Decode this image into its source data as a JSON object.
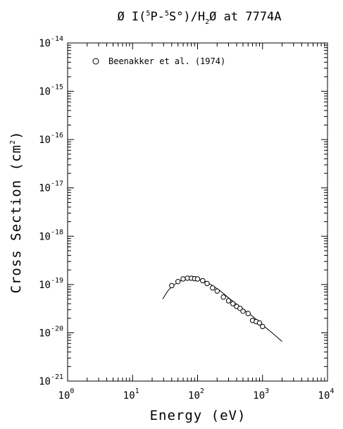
{
  "chart_data": {
    "type": "scatter",
    "title": "O I(5P-5S°)/H2O at 7774A",
    "title_parts": {
      "species": "Ø I(",
      "upper_sup": "5",
      "upper_term": "P-",
      "lower_sup": "5",
      "lower_term": "S°)/H",
      "sub_2": "2",
      "tail": "Ø at 7774A"
    },
    "xlabel": "Energy (eV)",
    "ylabel": "Cross Section (cm2)",
    "ylabel_parts": {
      "main": "Cross Section (cm",
      "sup": "2",
      "close": ")"
    },
    "x_scale": "log",
    "y_scale": "log",
    "xlim": [
      1,
      10000
    ],
    "ylim": [
      1e-21,
      1e-14
    ],
    "x_ticks": [
      {
        "base": "10",
        "exp": "0",
        "value": 1
      },
      {
        "base": "10",
        "exp": "1",
        "value": 10
      },
      {
        "base": "10",
        "exp": "2",
        "value": 100
      },
      {
        "base": "10",
        "exp": "3",
        "value": 1000
      },
      {
        "base": "10",
        "exp": "4",
        "value": 10000
      }
    ],
    "y_ticks": [
      {
        "base": "10",
        "exp": "-21",
        "value": 1e-21
      },
      {
        "base": "10",
        "exp": "-20",
        "value": 1e-20
      },
      {
        "base": "10",
        "exp": "-19",
        "value": 1e-19
      },
      {
        "base": "10",
        "exp": "-18",
        "value": 1e-18
      },
      {
        "base": "10",
        "exp": "-17",
        "value": 1e-17
      },
      {
        "base": "10",
        "exp": "-16",
        "value": 1e-16
      },
      {
        "base": "10",
        "exp": "-15",
        "value": 1e-15
      },
      {
        "base": "10",
        "exp": "-14",
        "value": 1e-14
      }
    ],
    "grid": false,
    "legend_position": "top-left",
    "series": [
      {
        "name": "Beenakker et al. (1974)",
        "marker": "open-circle",
        "x": [
          40,
          50,
          60,
          70,
          80,
          90,
          100,
          120,
          140,
          170,
          200,
          250,
          300,
          350,
          400,
          450,
          500,
          600,
          700,
          800,
          900,
          1000
        ],
        "y": [
          9.5e-20,
          1.15e-19,
          1.3e-19,
          1.35e-19,
          1.35e-19,
          1.32e-19,
          1.3e-19,
          1.2e-19,
          1.05e-19,
          8.5e-20,
          7.3e-20,
          5.5e-20,
          4.6e-20,
          4e-20,
          3.5e-20,
          3.2e-20,
          2.8e-20,
          2.5e-20,
          1.8e-20,
          1.7e-20,
          1.6e-20,
          1.35e-20
        ]
      },
      {
        "name": "",
        "marker": "none",
        "line": "solid",
        "x": [
          29,
          35,
          40,
          50,
          60,
          70,
          80,
          100,
          130,
          170,
          220,
          300,
          400,
          500,
          700,
          1000,
          1400,
          2000
        ],
        "y": [
          5e-20,
          7.4e-20,
          9e-20,
          1.12e-19,
          1.26e-19,
          1.33e-19,
          1.34e-19,
          1.3e-19,
          1.17e-19,
          9.5e-20,
          7.5e-20,
          5.3e-20,
          3.9e-20,
          3.1e-20,
          2.2e-20,
          1.45e-20,
          1e-20,
          6.6e-21
        ]
      }
    ]
  }
}
